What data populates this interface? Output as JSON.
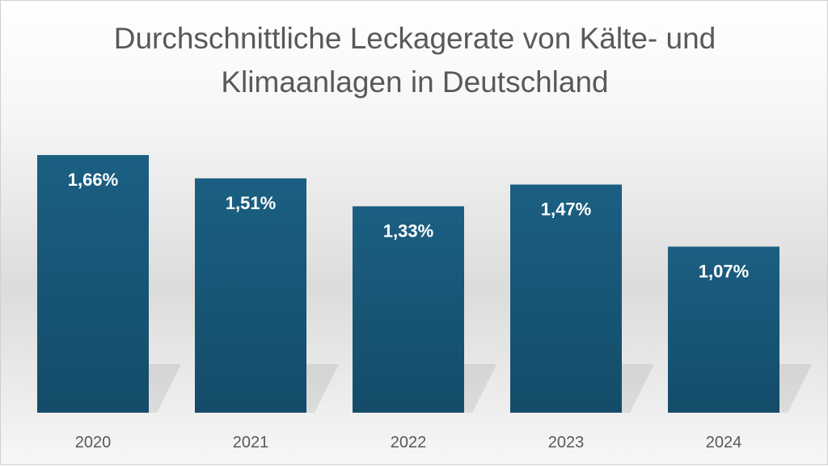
{
  "chart_data": {
    "type": "bar",
    "title_lines": [
      "Durchschnittliche Leckagerate von Kälte- und",
      "Klimaanlagen in Deutschland"
    ],
    "categories": [
      "2020",
      "2021",
      "2022",
      "2023",
      "2024"
    ],
    "values": [
      1.66,
      1.51,
      1.33,
      1.47,
      1.07
    ],
    "data_labels": [
      "1,66%",
      "1,51%",
      "1,33%",
      "1,47%",
      "1,07%"
    ],
    "xlabel": "",
    "ylabel": "",
    "ylim": [
      0,
      1.66
    ],
    "grid": false,
    "legend": "none",
    "colors": {
      "bar_top": "#1b5f82",
      "bar_bottom": "#144c69",
      "label": "#595959",
      "data_label": "#ffffff"
    }
  }
}
